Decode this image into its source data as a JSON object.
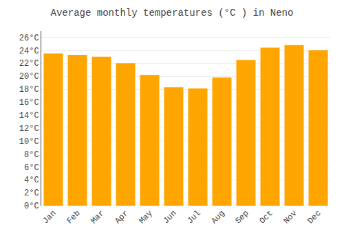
{
  "chart_data": {
    "type": "bar",
    "title": "Average monthly temperatures (°C ) in Neno",
    "categories": [
      "Jan",
      "Feb",
      "Mar",
      "Apr",
      "May",
      "Jun",
      "Jul",
      "Aug",
      "Sep",
      "Oct",
      "Nov",
      "Dec"
    ],
    "values": [
      23.5,
      23.3,
      23.0,
      22.0,
      20.2,
      18.3,
      18.1,
      19.8,
      22.5,
      24.4,
      24.8,
      24.0
    ],
    "color": "#FFA500",
    "ylim": [
      0,
      27
    ],
    "yticks": [
      {
        "value": 0,
        "label": "0°C"
      },
      {
        "value": 2,
        "label": "2°C"
      },
      {
        "value": 4,
        "label": "4°C"
      },
      {
        "value": 6,
        "label": "6°C"
      },
      {
        "value": 8,
        "label": "8°C"
      },
      {
        "value": 10,
        "label": "10°C"
      },
      {
        "value": 12,
        "label": "12°C"
      },
      {
        "value": 14,
        "label": "14°C"
      },
      {
        "value": 16,
        "label": "16°C"
      },
      {
        "value": 18,
        "label": "18°C"
      },
      {
        "value": 20,
        "label": "20°C"
      },
      {
        "value": 22,
        "label": "22°C"
      },
      {
        "value": 24,
        "label": "24°C"
      },
      {
        "value": 26,
        "label": "26°C"
      }
    ],
    "grid": true
  }
}
